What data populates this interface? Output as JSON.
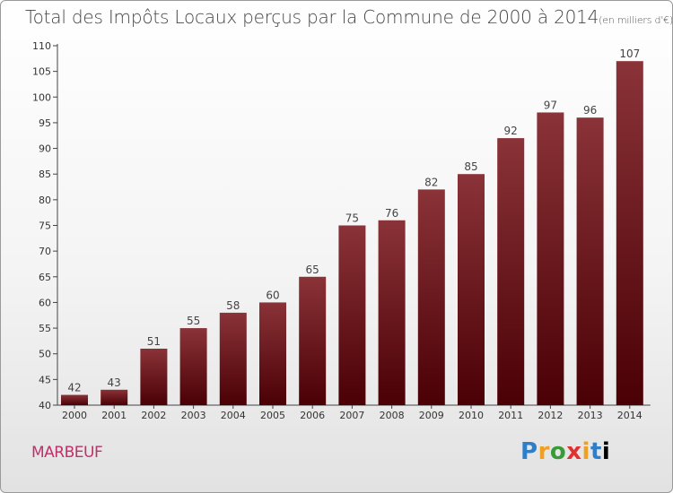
{
  "chart_data": {
    "type": "bar",
    "title": "Total des Impôts Locaux perçus par la Commune de 2000 à 2014",
    "unit_label": "(en milliers d'€)",
    "categories": [
      "2000",
      "2001",
      "2002",
      "2003",
      "2004",
      "2005",
      "2006",
      "2007",
      "2008",
      "2009",
      "2010",
      "2011",
      "2012",
      "2013",
      "2014"
    ],
    "values": [
      42,
      43,
      51,
      55,
      58,
      60,
      65,
      75,
      76,
      82,
      85,
      92,
      97,
      96,
      107
    ],
    "ylim": [
      40,
      110
    ],
    "yticks": [
      40,
      45,
      50,
      55,
      60,
      65,
      70,
      75,
      80,
      85,
      90,
      95,
      100,
      105,
      110
    ],
    "grid": false,
    "colors": {
      "bar_top": "#8a3338",
      "bar_bottom": "#4a0005"
    }
  },
  "commune": "MARBEUF",
  "brand": {
    "letters": [
      "P",
      "r",
      "o",
      "x",
      "i",
      "t",
      "i"
    ]
  }
}
